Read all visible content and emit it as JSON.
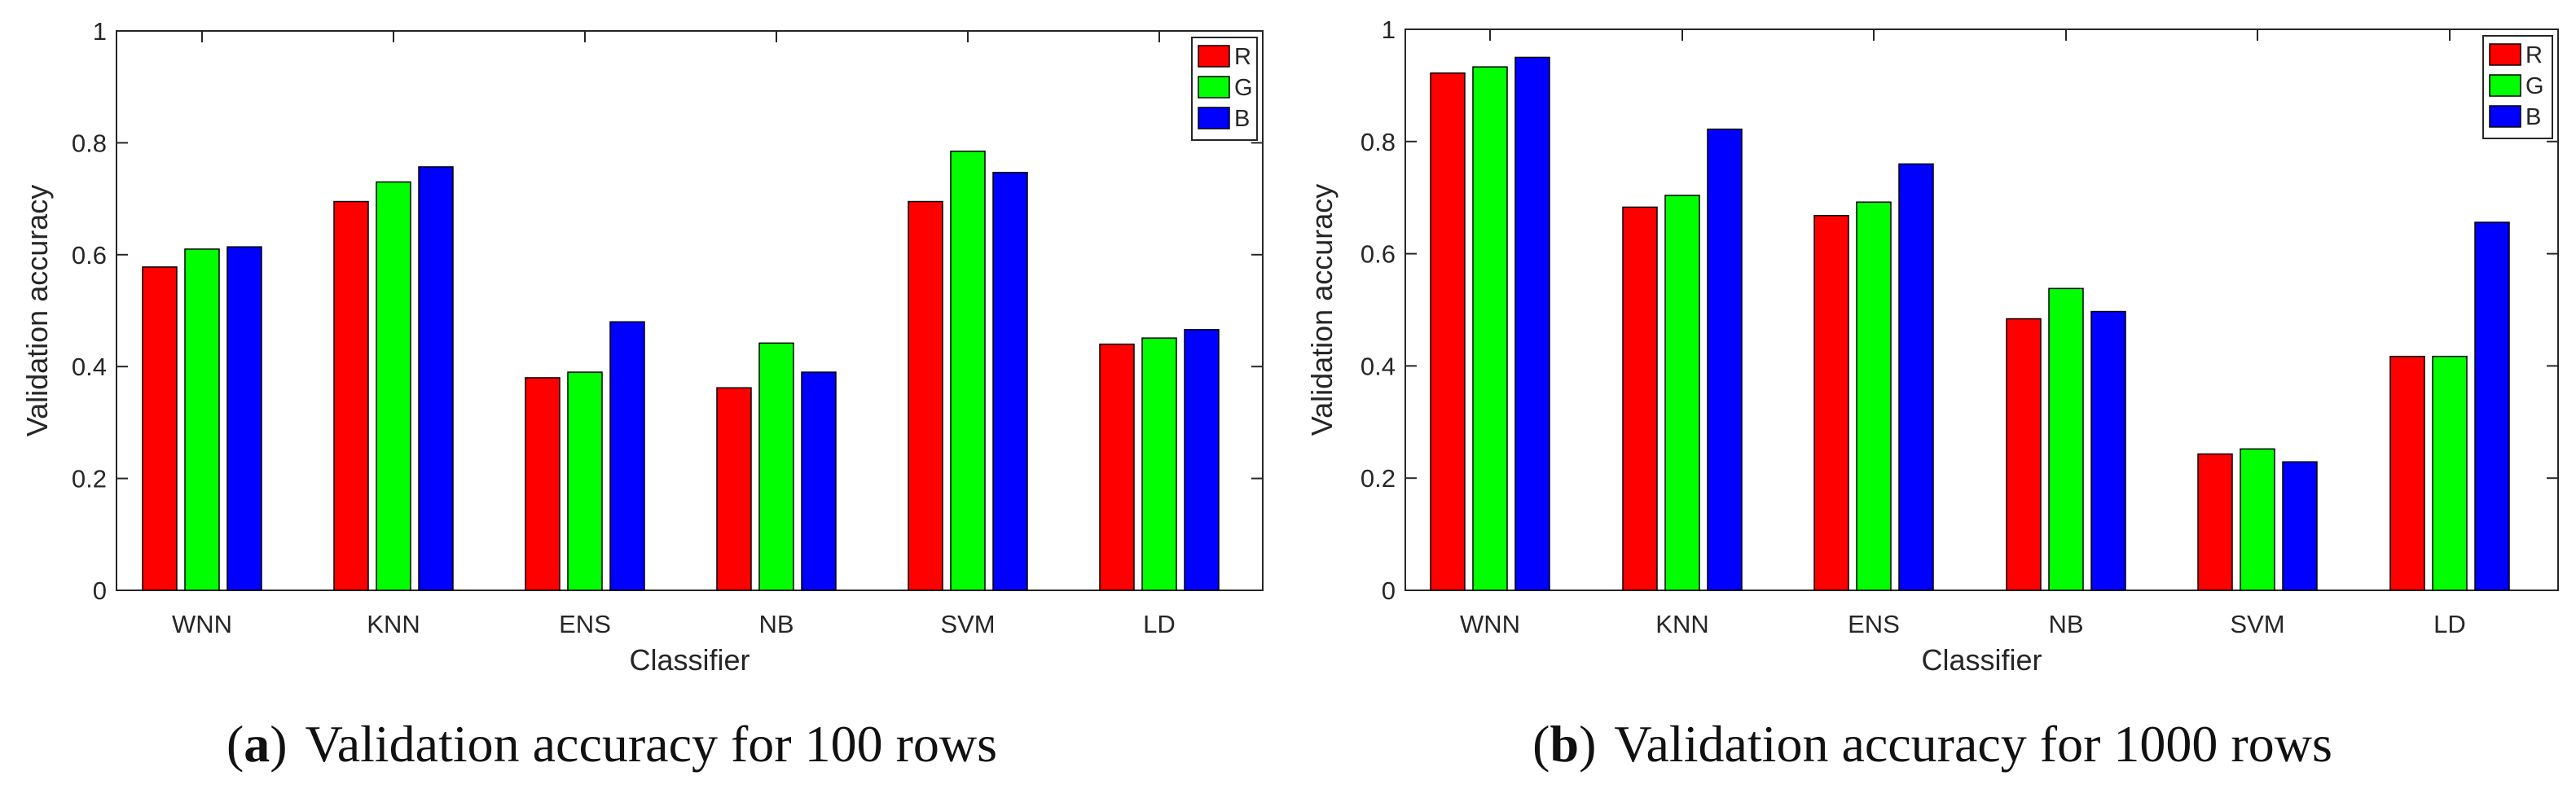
{
  "chart_data": [
    {
      "type": "bar",
      "caption_letter": "a",
      "caption_text": "Validation accuracy for 100 rows",
      "xlabel": "Classifier",
      "ylabel": "Validation accuracy",
      "ylim": [
        0,
        1
      ],
      "yticks": [
        0,
        0.2,
        0.4,
        0.6,
        0.8,
        1
      ],
      "ytick_labels": [
        "0",
        "0.2",
        "0.4",
        "0.6",
        "0.8",
        "1"
      ],
      "categories": [
        "WNN",
        "KNN",
        "ENS",
        "NB",
        "SVM",
        "LD"
      ],
      "legend_position": "top-right",
      "series": [
        {
          "name": "R",
          "color": "#ff0000",
          "values": [
            0.578,
            0.695,
            0.38,
            0.362,
            0.695,
            0.44
          ]
        },
        {
          "name": "G",
          "color": "#00ff00",
          "values": [
            0.61,
            0.73,
            0.39,
            0.442,
            0.785,
            0.451
          ]
        },
        {
          "name": "B",
          "color": "#0000ff",
          "values": [
            0.614,
            0.757,
            0.48,
            0.39,
            0.747,
            0.466
          ]
        }
      ]
    },
    {
      "type": "bar",
      "caption_letter": "b",
      "caption_text": "Validation accuracy for 1000 rows",
      "xlabel": "Classifier",
      "ylabel": "Validation accuracy",
      "ylim": [
        0,
        1
      ],
      "yticks": [
        0,
        0.2,
        0.4,
        0.6,
        0.8,
        1
      ],
      "ytick_labels": [
        "0",
        "0.2",
        "0.4",
        "0.6",
        "0.8",
        "1"
      ],
      "categories": [
        "WNN",
        "KNN",
        "ENS",
        "NB",
        "SVM",
        "LD"
      ],
      "legend_position": "top-right",
      "series": [
        {
          "name": "R",
          "color": "#ff0000",
          "values": [
            0.922,
            0.683,
            0.668,
            0.484,
            0.243,
            0.417
          ]
        },
        {
          "name": "G",
          "color": "#00ff00",
          "values": [
            0.933,
            0.704,
            0.692,
            0.538,
            0.252,
            0.417
          ]
        },
        {
          "name": "B",
          "color": "#0000ff",
          "values": [
            0.95,
            0.822,
            0.76,
            0.497,
            0.229,
            0.656
          ]
        }
      ]
    }
  ]
}
